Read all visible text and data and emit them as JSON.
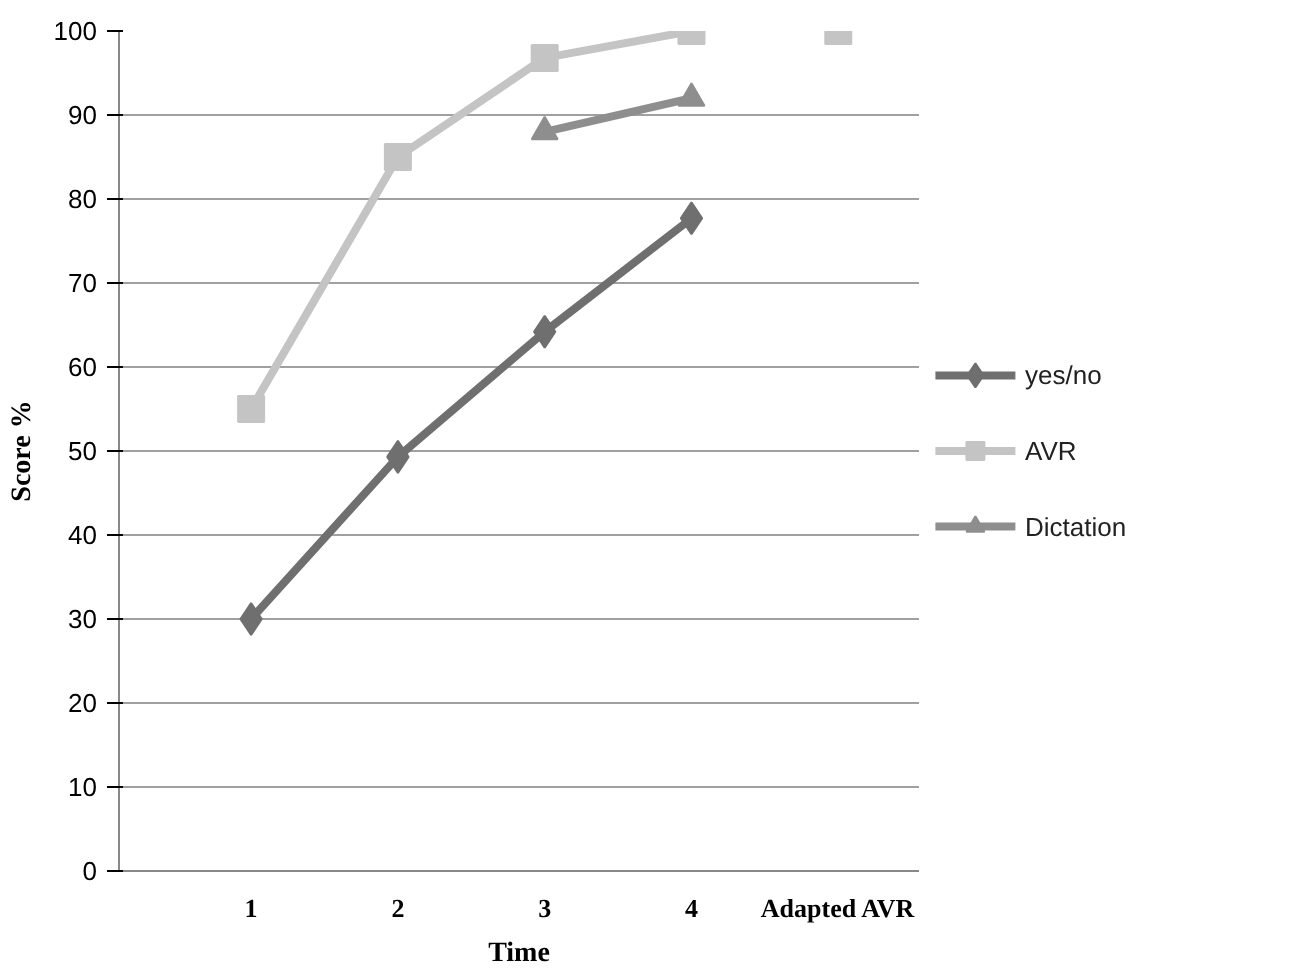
{
  "chart_data": {
    "type": "line",
    "xlabel": "Time",
    "ylabel": "Score %",
    "categories": [
      "1",
      "2",
      "3",
      "4",
      "Adapted AVR"
    ],
    "ylim": [
      0,
      100
    ],
    "yticks": [
      0,
      10,
      20,
      30,
      40,
      50,
      60,
      70,
      80,
      90,
      100
    ],
    "grid": "y",
    "legend": "right",
    "series": [
      {
        "name": "yes/no",
        "color": "#6f6f6f",
        "marker": "diamond",
        "values": [
          30,
          49.3,
          64.2,
          77.7,
          null
        ]
      },
      {
        "name": "AVR",
        "color": "#c4c4c4",
        "marker": "square",
        "values": [
          55,
          85,
          96.8,
          100,
          null
        ]
      },
      {
        "name": "Dictation",
        "color": "#8e8e8e",
        "marker": "triangle",
        "values": [
          null,
          null,
          88,
          92,
          null
        ]
      },
      {
        "type": "scatter",
        "color": "#c4c4c4",
        "marker": "square",
        "values": [
          null,
          null,
          null,
          null,
          100
        ]
      }
    ]
  }
}
